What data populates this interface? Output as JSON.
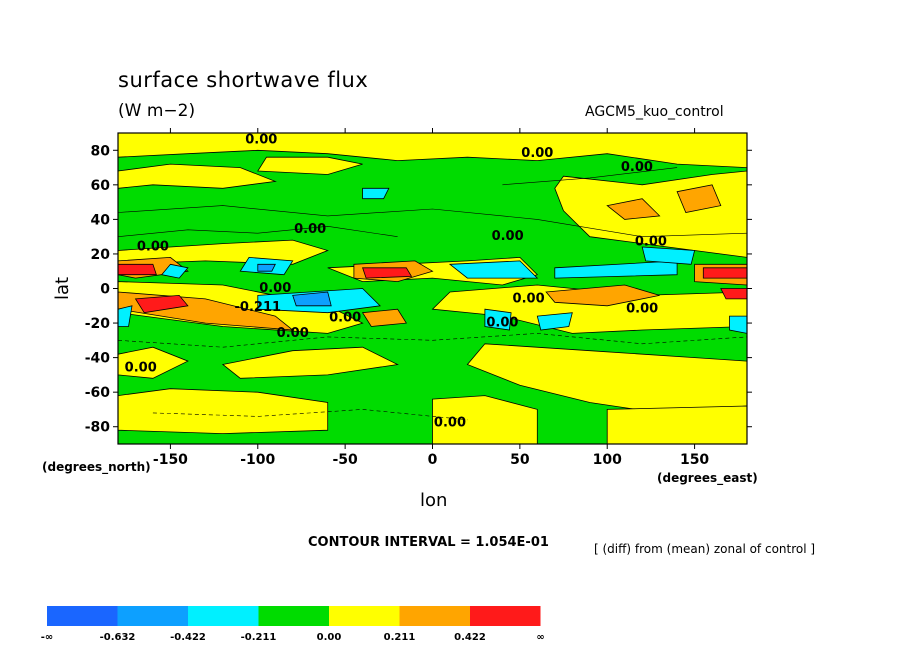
{
  "chart_data": {
    "type": "heatmap",
    "title": "surface shortwave flux",
    "units": "(W m−2)",
    "model_label": "AGCM5_kuo_control",
    "xlabel": "lon",
    "ylabel": "lat",
    "x_unit_label": "(degrees_east)",
    "y_unit_label": "(degrees_north)",
    "xlim": [
      -180,
      180
    ],
    "ylim": [
      -90,
      90
    ],
    "x_ticks": [
      -150,
      -100,
      -50,
      0,
      50,
      100,
      150
    ],
    "y_ticks": [
      80,
      60,
      40,
      20,
      0,
      -20,
      -40,
      -60,
      -80
    ],
    "contour_interval_text": "CONTOUR INTERVAL = 1.054E-01",
    "note": "[ (diff) from (mean) zonal of control ]",
    "contour_labels": [
      "0.00",
      "-0.211"
    ],
    "colorbar": {
      "labels": [
        "-∞",
        "-0.632",
        "-0.422",
        "-0.211",
        "0.00",
        "0.211",
        "0.422",
        "∞"
      ],
      "colors": [
        "#1a66ff",
        "#0da0ff",
        "#00f0ff",
        "#00dc00",
        "#ffff00",
        "#ffa500",
        "#ff1a1a"
      ]
    }
  }
}
